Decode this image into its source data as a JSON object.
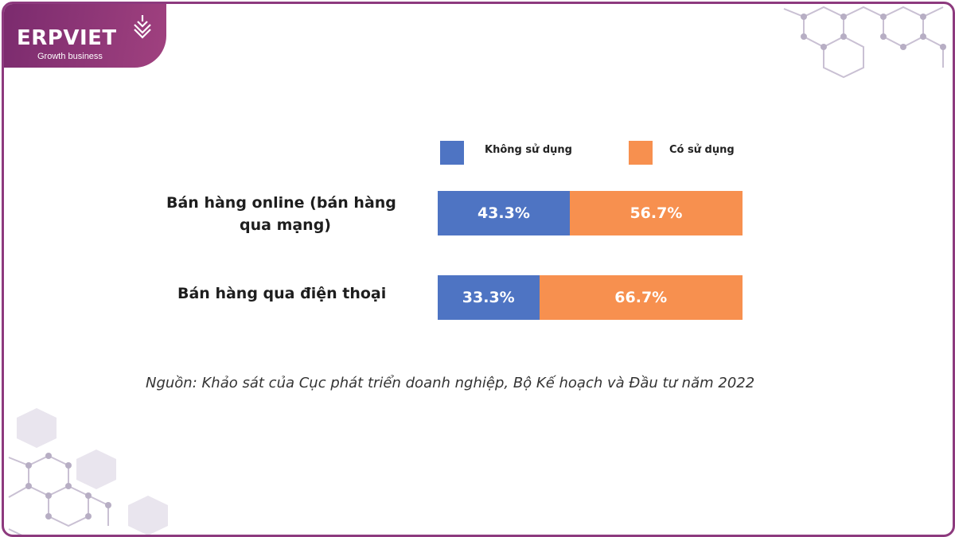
{
  "brand": {
    "name": "ERPVIET",
    "tagline": "Growth business",
    "primary_color": "#8d3a7e"
  },
  "chart_data": {
    "type": "bar",
    "orientation": "horizontal",
    "stacked": true,
    "categories": [
      "Bán hàng online (bán hàng qua mạng)",
      "Bán hàng qua điện thoại"
    ],
    "category_lines": [
      [
        "Bán hàng online (bán hàng",
        "qua mạng)"
      ],
      [
        "Bán hàng qua điện thoại"
      ]
    ],
    "series": [
      {
        "name": "Không sử dụng",
        "values": [
          43.3,
          33.3
        ],
        "color": "#4e74c3"
      },
      {
        "name": "Có sử dụng",
        "values": [
          56.7,
          66.7
        ],
        "color": "#f7904f"
      }
    ],
    "data_labels": [
      [
        "43.3%",
        "33.3%"
      ],
      [
        "56.7%",
        "66.7%"
      ]
    ],
    "legend_position": "top",
    "grid": false
  },
  "source_note": "Nguồn: Khảo sát của Cục phát triển doanh nghiệp, Bộ Kế hoạch và Đầu tư năm 2022"
}
